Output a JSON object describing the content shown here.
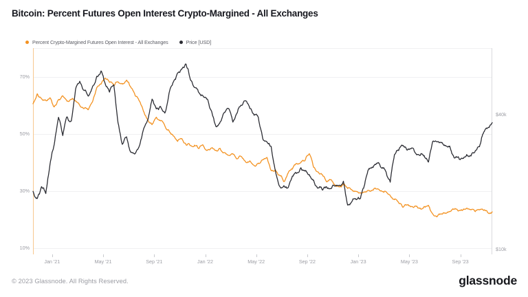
{
  "header": {
    "title": "Bitcoin: Percent Futures Open Interest Crypto-Margined - All Exchanges"
  },
  "legend": [
    {
      "label": "Percent Crypto-Margined Futures Open Interest - All Exchanges",
      "color": "#f39221"
    },
    {
      "label": "Price [USD]",
      "color": "#2b2c33"
    }
  ],
  "footer": {
    "copyright": "© 2023 Glassnode. All Rights Reserved.",
    "brand": "glassnode"
  },
  "chart_data": {
    "type": "line",
    "title": "Bitcoin: Percent Futures Open Interest Crypto-Margined - All Exchanges",
    "x_unit": "months since Nov 2020",
    "x_domain_months": [
      0,
      36
    ],
    "x_ticks": [
      {
        "t": 1.5,
        "label": "Jan '21"
      },
      {
        "t": 5.5,
        "label": "May '21"
      },
      {
        "t": 9.5,
        "label": "Sep '21"
      },
      {
        "t": 13.5,
        "label": "Jan '22"
      },
      {
        "t": 17.5,
        "label": "May '22"
      },
      {
        "t": 21.5,
        "label": "Sep '22"
      },
      {
        "t": 25.5,
        "label": "Jan '23"
      },
      {
        "t": 29.5,
        "label": "May '23"
      },
      {
        "t": 33.5,
        "label": "Sep '23"
      }
    ],
    "left_axis": {
      "unit": "%",
      "scale": "linear",
      "ticks": [
        {
          "value": 70,
          "label": "70%"
        },
        {
          "value": 50,
          "label": "50%"
        },
        {
          "value": 30,
          "label": "30%"
        },
        {
          "value": 10,
          "label": "10%"
        }
      ]
    },
    "right_axis": {
      "unit": "USD",
      "scale": "log",
      "ticks": [
        {
          "value": 40000,
          "label": "$40k"
        },
        {
          "value": 10000,
          "label": "$10k"
        }
      ]
    },
    "series": [
      {
        "name": "Percent Crypto-Margined Futures Open Interest - All Exchanges",
        "axis": "left",
        "unit": "%",
        "color": "#f39221",
        "values": [
          60.5,
          64,
          62.3,
          61.7,
          62.6,
          59.4,
          62,
          63.3,
          61.4,
          62,
          61.6,
          60,
          58.8,
          58.4,
          61.2,
          66.2,
          67.4,
          69.5,
          68,
          66.8,
          68.2,
          67.4,
          68.8,
          66.3,
          63.5,
          61.5,
          57.8,
          54.8,
          53.2,
          55.8,
          54.5,
          52.8,
          51,
          49.2,
          47.3,
          48.3,
          46.1,
          45.8,
          46,
          44.8,
          46,
          44.2,
          45,
          44.2,
          44.9,
          43.4,
          42.4,
          43,
          41.2,
          42,
          40.1,
          40.5,
          38.9,
          39.7,
          40.9,
          41.7,
          37.1,
          37.4,
          35.5,
          33.2,
          36.2,
          37.6,
          39.6,
          39.9,
          40.7,
          43,
          38.2,
          36.6,
          35.7,
          33.2,
          33.9,
          32,
          31.3,
          32.4,
          30.8,
          30.3,
          29.8,
          29.3,
          29.6,
          30.1,
          30.2,
          30.7,
          29.9,
          29.7,
          28.3,
          26.9,
          25.8,
          24.2,
          25.1,
          24.5,
          24.7,
          24,
          24.5,
          24.9,
          21.9,
          20.9,
          21.9,
          22.1,
          22.7,
          23.5,
          22.9,
          23.1,
          23.9,
          23.3,
          22.7,
          23.3,
          23.1,
          22.3,
          22.6
        ]
      },
      {
        "name": "Price [USD]",
        "axis": "right",
        "unit": "USD thousands",
        "color": "#2b2c33",
        "values": [
          18.2,
          16.9,
          19.1,
          17.8,
          24,
          29.5,
          39,
          32.3,
          39.2,
          37.5,
          52,
          56.5,
          51.5,
          48.5,
          53.5,
          59.5,
          62.8,
          55,
          50.5,
          54.5,
          36.8,
          29.5,
          31.9,
          27.2,
          26.8,
          29,
          34.5,
          38,
          47,
          42.5,
          43.5,
          40.7,
          50,
          56,
          61.5,
          64,
          67.3,
          57.5,
          53,
          50.3,
          48.5,
          47,
          41.5,
          35.5,
          37.1,
          41,
          42.7,
          37.1,
          40.7,
          44.1,
          46.2,
          42.7,
          39.8,
          38.9,
          31.5,
          30.3,
          28.9,
          22.5,
          19.2,
          19.3,
          18.9,
          21.3,
          21.9,
          23.2,
          22.4,
          21.6,
          20.4,
          18.8,
          18.5,
          19.1,
          18.7,
          19.2,
          19.4,
          20.2,
          15.8,
          16.4,
          16.7,
          16.9,
          19.5,
          23,
          23.3,
          24.4,
          23.1,
          22.3,
          20,
          26.5,
          27.7,
          29.2,
          27.8,
          28.4,
          26.9,
          26.3,
          26.3,
          24.6,
          30.4,
          30.3,
          30,
          29.2,
          29,
          25.8,
          26,
          25.5,
          26.6,
          26.2,
          27.6,
          28.8,
          33.5,
          35,
          36.9
        ]
      }
    ],
    "grid": "horizontal-light",
    "legend_position": "top-left"
  }
}
